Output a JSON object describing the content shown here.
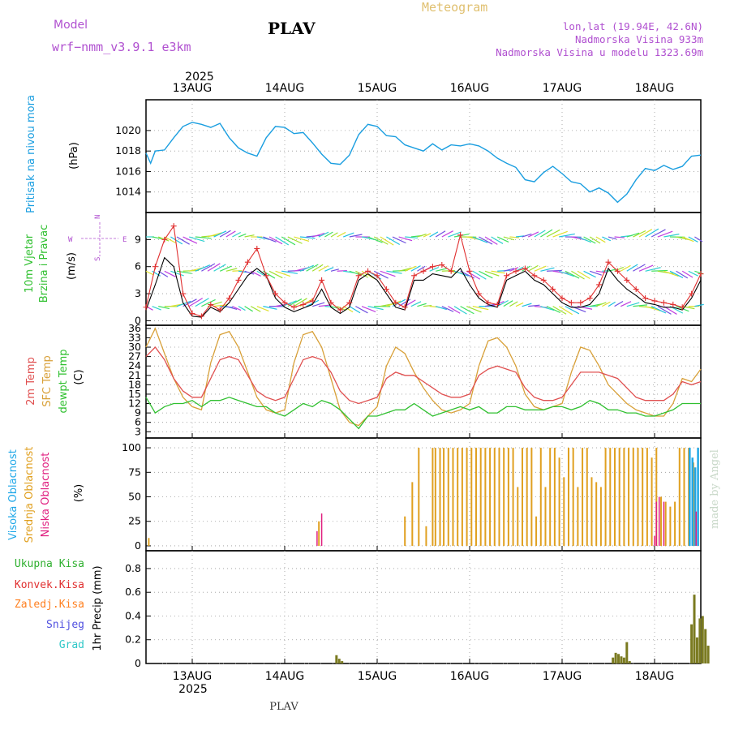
{
  "header": {
    "model_label": "Model",
    "model_name": "wrf−nmm_v3.9.1 e3km",
    "station": "PLAV",
    "meteogram_title": "Meteogram",
    "lonlat": "lon,lat (19.94E, 42.6N)",
    "altitude": "Nadmorska Visina 933m",
    "model_altitude": "Nadmorska Visina u modelu 1323.69m",
    "year_top": "2025",
    "year_bottom": "2025",
    "footer_station": "PLAV",
    "watermark": "made by Angel"
  },
  "dates": [
    "13AUG",
    "14AUG",
    "15AUG",
    "16AUG",
    "17AUG",
    "18AUG"
  ],
  "colors": {
    "pressure": "#1a9ee0",
    "wind_mean": "#000000",
    "wind_gust": "#e03030",
    "temp2m": "#e05050",
    "sfc_temp": "#d8a038",
    "dewpt": "#30c030",
    "high_cloud": "#20a8e8",
    "mid_cloud": "#e0a020",
    "low_cloud": "#e02080",
    "rain_total": "#30b030",
    "rain_conv": "#e03030",
    "freezing": "#ff8020",
    "snow": "#5050e0",
    "hail": "#30c8c8",
    "precip_bar": "#7a7a20",
    "label_purple": "#b050d0"
  },
  "chart_data": [
    {
      "id": "pressure",
      "type": "line",
      "title": "Pritisak na nivou mora",
      "ylabel": "(hPa)",
      "ylim": [
        1012,
        1023
      ],
      "yticks": [
        1014,
        1016,
        1018,
        1020
      ],
      "x_days": [
        0,
        0.05,
        0.1,
        0.2,
        0.3,
        0.4,
        0.5,
        0.6,
        0.7,
        0.8,
        0.9,
        1.0,
        1.1,
        1.2,
        1.3,
        1.4,
        1.5,
        1.6,
        1.7,
        1.8,
        1.9,
        2.0,
        2.1,
        2.2,
        2.3,
        2.4,
        2.5,
        2.6,
        2.7,
        2.8,
        2.9,
        3.0,
        3.1,
        3.2,
        3.3,
        3.4,
        3.5,
        3.6,
        3.7,
        3.8,
        3.9,
        4.0,
        4.1,
        4.2,
        4.3,
        4.4,
        4.5,
        4.6,
        4.7,
        4.8,
        4.9,
        5.0,
        5.1,
        5.2,
        5.3,
        5.4,
        5.5,
        5.6,
        5.7,
        5.8,
        5.9,
        6.0
      ],
      "values": [
        1017.8,
        1016.8,
        1018.0,
        1018.1,
        1019.3,
        1020.4,
        1020.8,
        1020.6,
        1020.3,
        1020.7,
        1019.3,
        1018.3,
        1017.8,
        1017.5,
        1019.3,
        1020.4,
        1020.3,
        1019.7,
        1019.8,
        1018.8,
        1017.7,
        1016.8,
        1016.7,
        1017.6,
        1019.6,
        1020.6,
        1020.4,
        1019.5,
        1019.4,
        1018.6,
        1018.3,
        1018.0,
        1018.7,
        1018.1,
        1018.6,
        1018.5,
        1018.7,
        1018.5,
        1018.0,
        1017.3,
        1016.8,
        1016.4,
        1015.2,
        1015.0,
        1015.9,
        1016.5,
        1015.8,
        1015.0,
        1014.8,
        1014.0,
        1014.4,
        1013.9,
        1013.0,
        1013.8,
        1015.2,
        1016.3,
        1016.1,
        1016.6,
        1016.2,
        1016.5,
        1017.5,
        1017.6
      ]
    },
    {
      "id": "wind",
      "type": "line",
      "title": "10m Vjetar Brzina i Pravac",
      "ylabel": "(m/s)",
      "ylim": [
        -0.5,
        12
      ],
      "yticks": [
        0,
        3,
        6,
        9
      ],
      "compass": [
        "N",
        "W",
        "E",
        "S"
      ],
      "x_days": [
        0,
        0.1,
        0.2,
        0.3,
        0.4,
        0.5,
        0.6,
        0.7,
        0.8,
        0.9,
        1.0,
        1.1,
        1.2,
        1.3,
        1.4,
        1.5,
        1.6,
        1.7,
        1.8,
        1.9,
        2.0,
        2.1,
        2.2,
        2.3,
        2.4,
        2.5,
        2.6,
        2.7,
        2.8,
        2.9,
        3.0,
        3.1,
        3.2,
        3.3,
        3.4,
        3.5,
        3.6,
        3.7,
        3.8,
        3.9,
        4.0,
        4.1,
        4.2,
        4.3,
        4.4,
        4.5,
        4.6,
        4.7,
        4.8,
        4.9,
        5.0,
        5.1,
        5.2,
        5.3,
        5.4,
        5.5,
        5.6,
        5.7,
        5.8,
        5.9,
        6.0
      ],
      "mean": [
        1.2,
        4.0,
        7.0,
        6.0,
        2.0,
        0.5,
        0.4,
        1.5,
        1.0,
        2.0,
        3.5,
        5.0,
        5.8,
        5.0,
        2.5,
        1.5,
        1.0,
        1.4,
        1.8,
        3.5,
        1.5,
        0.8,
        1.5,
        4.5,
        5.2,
        4.5,
        3.0,
        1.5,
        1.2,
        4.5,
        4.5,
        5.2,
        5.0,
        4.8,
        5.8,
        4.0,
        2.5,
        1.8,
        1.5,
        4.5,
        5.0,
        5.5,
        4.5,
        4.0,
        3.0,
        2.0,
        1.5,
        1.5,
        1.8,
        3.0,
        5.8,
        4.5,
        3.5,
        2.8,
        2.0,
        1.8,
        1.5,
        1.5,
        1.2,
        2.5,
        4.5
      ],
      "gust": [
        1.5,
        6.0,
        9.0,
        10.5,
        3.0,
        0.8,
        0.5,
        1.8,
        1.2,
        2.5,
        4.5,
        6.5,
        8.0,
        5.0,
        3.0,
        2.0,
        1.5,
        1.8,
        2.2,
        4.5,
        2.0,
        1.2,
        2.0,
        5.0,
        5.5,
        5.0,
        3.5,
        2.0,
        1.5,
        5.0,
        5.5,
        6.0,
        6.2,
        5.5,
        9.5,
        5.5,
        3.0,
        2.0,
        1.8,
        5.0,
        5.5,
        5.8,
        5.0,
        4.5,
        3.5,
        2.5,
        2.0,
        2.0,
        2.5,
        4.0,
        6.5,
        5.5,
        4.5,
        3.5,
        2.5,
        2.2,
        2.0,
        1.8,
        1.5,
        3.0,
        5.2
      ]
    },
    {
      "id": "temperature",
      "type": "line",
      "series_labels": [
        "2m Temp",
        "SFC Temp",
        "dewpt Temp"
      ],
      "ylabel": "(C)",
      "ylim": [
        1,
        37
      ],
      "yticks": [
        3,
        6,
        9,
        12,
        15,
        18,
        21,
        24,
        27,
        30,
        33,
        36
      ],
      "x_days": [
        0,
        0.1,
        0.2,
        0.3,
        0.4,
        0.5,
        0.6,
        0.7,
        0.8,
        0.9,
        1.0,
        1.1,
        1.2,
        1.3,
        1.4,
        1.5,
        1.6,
        1.7,
        1.8,
        1.9,
        2.0,
        2.1,
        2.2,
        2.3,
        2.4,
        2.5,
        2.6,
        2.7,
        2.8,
        2.9,
        3.0,
        3.1,
        3.2,
        3.3,
        3.4,
        3.5,
        3.6,
        3.7,
        3.8,
        3.9,
        4.0,
        4.1,
        4.2,
        4.3,
        4.4,
        4.5,
        4.6,
        4.7,
        4.8,
        4.9,
        5.0,
        5.1,
        5.2,
        5.3,
        5.4,
        5.5,
        5.6,
        5.7,
        5.8,
        5.9,
        6.0
      ],
      "temp2m": [
        27,
        30,
        26,
        20,
        16,
        14,
        14,
        20,
        26,
        27,
        26,
        21,
        16,
        14,
        13,
        14,
        20,
        26,
        27,
        26,
        22,
        16,
        13,
        12,
        13,
        14,
        20,
        22,
        21,
        21,
        19,
        17,
        15,
        14,
        14,
        15,
        21,
        23,
        24,
        23,
        22,
        17,
        14,
        13,
        13,
        14,
        18,
        22,
        22,
        22,
        21,
        20,
        17,
        14,
        13,
        13,
        13,
        15,
        19,
        18,
        19
      ],
      "sfc_temp": [
        30,
        36,
        28,
        20,
        14,
        11,
        10,
        25,
        34,
        35,
        30,
        22,
        14,
        10,
        9,
        10,
        25,
        34,
        35,
        30,
        20,
        10,
        6,
        5,
        8,
        11,
        24,
        30,
        28,
        22,
        17,
        13,
        10,
        9,
        10,
        12,
        24,
        32,
        33,
        30,
        24,
        15,
        11,
        10,
        11,
        12,
        22,
        30,
        29,
        24,
        18,
        15,
        12,
        10,
        9,
        8,
        8,
        12,
        20,
        19,
        23
      ],
      "dewpt": [
        14,
        9,
        11,
        12,
        12,
        13,
        11,
        13,
        13,
        14,
        13,
        12,
        11,
        11,
        9,
        8,
        10,
        12,
        11,
        13,
        12,
        10,
        7,
        4,
        8,
        8,
        9,
        10,
        10,
        12,
        10,
        8,
        9,
        10,
        11,
        10,
        11,
        9,
        9,
        11,
        11,
        10,
        10,
        10,
        11,
        11,
        10,
        11,
        13,
        12,
        10,
        10,
        9,
        9,
        8,
        8,
        9,
        10,
        12,
        12,
        12
      ]
    },
    {
      "id": "clouds",
      "type": "bar",
      "series_labels": [
        "Visoka Oblacnost",
        "Srednja Oblacnost",
        "Niska Oblacnost"
      ],
      "ylabel": "(%)",
      "ylim": [
        -5,
        110
      ],
      "yticks": [
        0,
        25,
        50,
        75,
        100
      ],
      "mid_x_days": [
        0.03,
        1.87,
        2.8,
        2.88,
        2.95,
        3.03,
        3.1,
        3.13,
        3.18,
        3.22,
        3.27,
        3.32,
        3.37,
        3.42,
        3.47,
        3.52,
        3.57,
        3.62,
        3.67,
        3.72,
        3.77,
        3.82,
        3.87,
        3.92,
        3.97,
        4.02,
        4.07,
        4.12,
        4.17,
        4.22,
        4.27,
        4.32,
        4.37,
        4.42,
        4.47,
        4.52,
        4.57,
        4.62,
        4.67,
        4.72,
        4.77,
        4.82,
        4.87,
        4.92,
        4.97,
        5.02,
        5.07,
        5.12,
        5.17,
        5.22,
        5.27,
        5.32,
        5.37,
        5.42,
        5.47,
        5.52,
        5.57,
        5.62,
        5.67,
        5.72,
        5.77,
        5.82,
        5.87,
        5.92,
        5.97
      ],
      "mid_values": [
        8,
        25,
        30,
        65,
        100,
        20,
        100,
        100,
        100,
        100,
        100,
        100,
        100,
        100,
        100,
        100,
        100,
        100,
        100,
        100,
        100,
        100,
        100,
        100,
        100,
        60,
        100,
        100,
        100,
        30,
        100,
        60,
        100,
        100,
        90,
        70,
        100,
        100,
        60,
        100,
        100,
        70,
        65,
        60,
        100,
        100,
        100,
        100,
        100,
        100,
        100,
        100,
        100,
        100,
        90,
        100,
        50,
        45,
        40,
        45,
        100,
        100,
        100,
        85,
        100
      ],
      "high_x_days": [
        5.88,
        5.91,
        5.94,
        5.97
      ],
      "high_values": [
        100,
        90,
        80,
        100
      ],
      "low_x_days": [
        1.85,
        1.9,
        5.5,
        5.52,
        5.55,
        5.6,
        5.95
      ],
      "low_values": [
        15,
        33,
        10,
        45,
        50,
        45,
        35
      ]
    },
    {
      "id": "precip",
      "type": "bar",
      "series_labels": [
        "Ukupna Kisa",
        "Konvek.Kisa",
        "Zaledj.Kisa",
        "Snijeg",
        "Grad"
      ],
      "ylabel": "1hr Precip (mm)",
      "ylim": [
        0,
        0.95
      ],
      "yticks": [
        0,
        0.2,
        0.4,
        0.6,
        0.8
      ],
      "x_days": [
        2.06,
        2.09,
        2.12,
        5.05,
        5.08,
        5.11,
        5.14,
        5.17,
        5.2,
        5.23,
        5.9,
        5.93,
        5.96,
        5.99,
        6.02,
        6.05,
        6.08
      ],
      "values": [
        0.07,
        0.04,
        0.02,
        0.05,
        0.09,
        0.08,
        0.06,
        0.05,
        0.18,
        0.02,
        0.33,
        0.58,
        0.22,
        0.38,
        0.4,
        0.29,
        0.15
      ]
    }
  ]
}
